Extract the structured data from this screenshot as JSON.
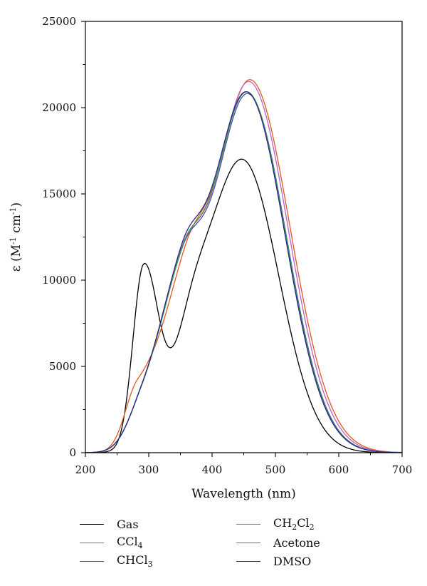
{
  "chart_data": {
    "type": "line",
    "xlabel": "Wavelength (nm)",
    "ylabel": "ε (M-1 cm-1)",
    "xlim": [
      200,
      700
    ],
    "ylim": [
      0,
      25000
    ],
    "x_ticks": [
      200,
      300,
      400,
      500,
      600,
      700
    ],
    "y_ticks": [
      0,
      5000,
      10000,
      15000,
      20000,
      25000
    ],
    "grid": false,
    "legend_position": "bottom",
    "series": [
      {
        "name": "Gas",
        "legend_label": "Gas",
        "color": "#000000",
        "bands": [
          {
            "center": 292,
            "amp": 10300,
            "lw": 17,
            "rw": 23
          },
          {
            "center": 447,
            "amp": 17000,
            "lw": 60,
            "rw": 58
          },
          {
            "center": 365,
            "amp": 2700,
            "lw": 25,
            "rw": 25
          }
        ]
      },
      {
        "name": "CCl4",
        "legend_label": "CCl<sub>4</sub>",
        "color": "#e05a1e",
        "bands": [
          {
            "center": 282,
            "amp": 3300,
            "lw": 20,
            "rw": 40
          },
          {
            "center": 358,
            "amp": 6900,
            "lw": 36,
            "rw": 30
          },
          {
            "center": 460,
            "amp": 21600,
            "lw": 58,
            "rw": 63
          }
        ]
      },
      {
        "name": "CHCl3",
        "legend_label": "CHCl<sub>3</sub>",
        "color": "#4a4fa8",
        "bands": [
          {
            "center": 290,
            "amp": 1900,
            "lw": 24,
            "rw": 34
          },
          {
            "center": 352,
            "amp": 7500,
            "lw": 37,
            "rw": 30
          },
          {
            "center": 456,
            "amp": 20800,
            "lw": 57,
            "rw": 61
          }
        ]
      },
      {
        "name": "CH2Cl2",
        "legend_label": "CH<sub>2</sub>Cl<sub>2</sub>",
        "color": "#c060c8",
        "bands": [
          {
            "center": 290,
            "amp": 1900,
            "lw": 24,
            "rw": 34
          },
          {
            "center": 352,
            "amp": 7500,
            "lw": 37,
            "rw": 30
          },
          {
            "center": 458,
            "amp": 21500,
            "lw": 58,
            "rw": 62
          }
        ]
      },
      {
        "name": "Acetone",
        "legend_label": "Acetone",
        "color": "#3c9a4a",
        "bands": [
          {
            "center": 290,
            "amp": 1900,
            "lw": 24,
            "rw": 34
          },
          {
            "center": 352,
            "amp": 7400,
            "lw": 37,
            "rw": 30
          },
          {
            "center": 455,
            "amp": 20900,
            "lw": 57,
            "rw": 61
          }
        ]
      },
      {
        "name": "DMSO",
        "legend_label": "DMSO",
        "color": "#28288a",
        "bands": [
          {
            "center": 290,
            "amp": 1900,
            "lw": 24,
            "rw": 34
          },
          {
            "center": 352,
            "amp": 7500,
            "lw": 37,
            "rw": 30
          },
          {
            "center": 454,
            "amp": 20900,
            "lw": 57,
            "rw": 61
          }
        ]
      }
    ]
  }
}
